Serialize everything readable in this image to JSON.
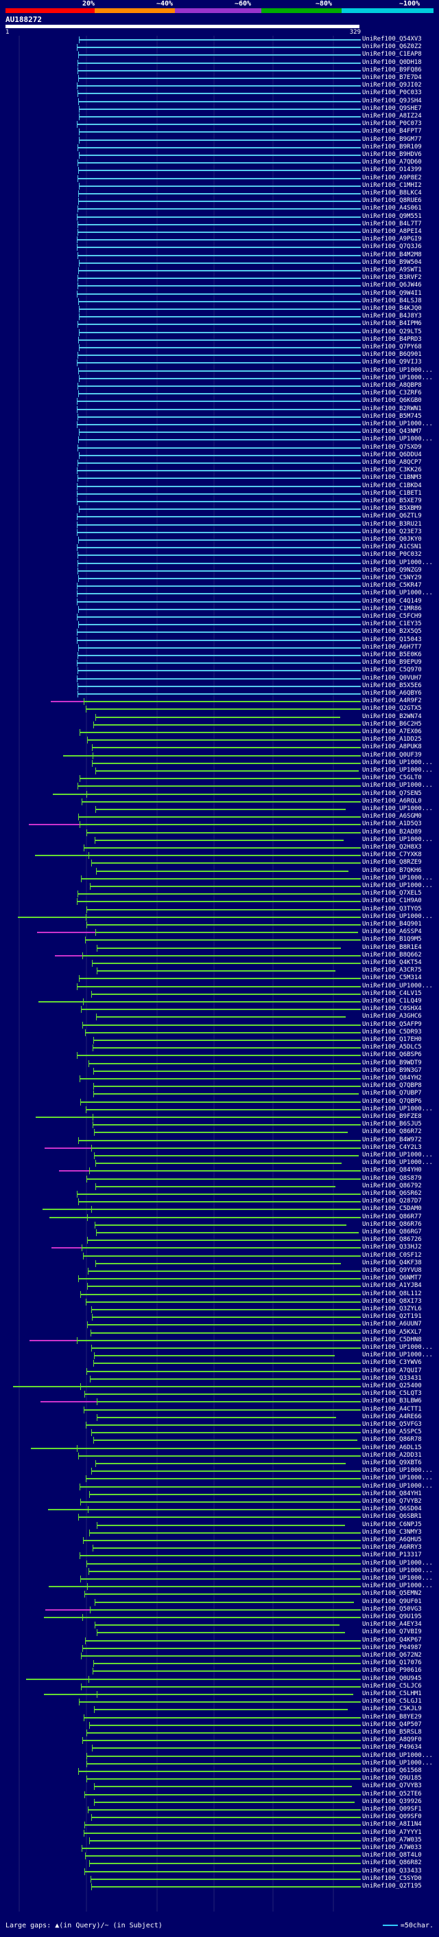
{
  "legend": {
    "labels": [
      "20%",
      "~40%",
      "~60%",
      "~80%",
      "~100%"
    ],
    "colors": [
      "#ff0000",
      "#ff8800",
      "#9933cc",
      "#00aa00",
      "#00ccdd"
    ]
  },
  "query": {
    "id": "AU188272",
    "start": "1",
    "end": "329"
  },
  "footer": {
    "gaps_text": "Large gaps: ▲(in Query)/~ (in Subject)",
    "scale_text": "=50char."
  },
  "colors": {
    "background": "#000066",
    "identity_100": "#55ccee",
    "identity_80": "#66dd33",
    "gap_subject": "#cc33cc",
    "gridline": "#222277"
  },
  "hits": [
    {
      "label": "UniRef100_Q54XV3",
      "identity": "~100%"
    },
    {
      "label": "UniRef100_Q6Z0Z2",
      "identity": "~100%"
    },
    {
      "label": "UniRef100_C1EAP8",
      "identity": "~100%"
    },
    {
      "label": "UniRef100_Q0DH18",
      "identity": "~100%"
    },
    {
      "label": "UniRef100_B9FQ86",
      "identity": "~100%"
    },
    {
      "label": "UniRef100_B7E7D4",
      "identity": "~100%"
    },
    {
      "label": "UniRef100_Q9JI02",
      "identity": "~100%"
    },
    {
      "label": "UniRef100_P0C033",
      "identity": "~100%"
    },
    {
      "label": "UniRef100_Q9JSH4",
      "identity": "~100%"
    },
    {
      "label": "UniRef100_Q9SHE7",
      "identity": "~100%"
    },
    {
      "label": "UniRef100_A8IZ24",
      "identity": "~100%"
    },
    {
      "label": "UniRef100_P0C073",
      "identity": "~100%"
    },
    {
      "label": "UniRef100_B4FPT7",
      "identity": "~100%"
    },
    {
      "label": "UniRef100_B9GM77",
      "identity": "~100%"
    },
    {
      "label": "UniRef100_B9R109",
      "identity": "~100%"
    },
    {
      "label": "UniRef100_B9HDV6",
      "identity": "~100%"
    },
    {
      "label": "UniRef100_A7QD60",
      "identity": "~100%"
    },
    {
      "label": "UniRef100_O14399",
      "identity": "~100%"
    },
    {
      "label": "UniRef100_A9P8E2",
      "identity": "~100%"
    },
    {
      "label": "UniRef100_C1MHI2",
      "identity": "~100%"
    },
    {
      "label": "UniRef100_B8LKC4",
      "identity": "~100%"
    },
    {
      "label": "UniRef100_Q8RUE6",
      "identity": "~100%"
    },
    {
      "label": "UniRef100_A4S061",
      "identity": "~100%"
    },
    {
      "label": "UniRef100_Q9M551",
      "identity": "~100%"
    },
    {
      "label": "UniRef100_B4L7T7",
      "identity": "~100%"
    },
    {
      "label": "UniRef100_A8PEI4",
      "identity": "~100%"
    },
    {
      "label": "UniRef100_A9PGI9",
      "identity": "~100%"
    },
    {
      "label": "UniRef100_Q7Q3J6",
      "identity": "~100%"
    },
    {
      "label": "UniRef100_B4M2M8",
      "identity": "~100%"
    },
    {
      "label": "UniRef100_B9W504",
      "identity": "~100%"
    },
    {
      "label": "UniRef100_A9SWT1",
      "identity": "~100%"
    },
    {
      "label": "UniRef100_B3RVF2",
      "identity": "~100%"
    },
    {
      "label": "UniRef100_Q6JW46",
      "identity": "~100%"
    },
    {
      "label": "UniRef100_Q9W4I1",
      "identity": "~100%"
    },
    {
      "label": "UniRef100_B4LSJ8",
      "identity": "~100%"
    },
    {
      "label": "UniRef100_B4KJQ0",
      "identity": "~100%"
    },
    {
      "label": "UniRef100_B4J8Y3",
      "identity": "~100%"
    },
    {
      "label": "UniRef100_B4IPM6",
      "identity": "~100%"
    },
    {
      "label": "UniRef100_Q29LT5",
      "identity": "~100%"
    },
    {
      "label": "UniRef100_B4PRD3",
      "identity": "~100%"
    },
    {
      "label": "UniRef100_Q7PY68",
      "identity": "~100%"
    },
    {
      "label": "UniRef100_B6Q901",
      "identity": "~100%"
    },
    {
      "label": "UniRef100_Q9VIJ3",
      "identity": "~100%"
    },
    {
      "label": "UniRef100_UP1000...",
      "identity": "~100%"
    },
    {
      "label": "UniRef100_UP1000...",
      "identity": "~100%"
    },
    {
      "label": "UniRef100_A8QBP8",
      "identity": "~100%"
    },
    {
      "label": "UniRef100_C3ZRF6",
      "identity": "~100%"
    },
    {
      "label": "UniRef100_Q6KGB0",
      "identity": "~100%"
    },
    {
      "label": "UniRef100_B2RWN1",
      "identity": "~100%"
    },
    {
      "label": "UniRef100_B5M745",
      "identity": "~100%"
    },
    {
      "label": "UniRef100_UP1000...",
      "identity": "~100%"
    },
    {
      "label": "UniRef100_Q43NM7",
      "identity": "~100%"
    },
    {
      "label": "UniRef100_UP1000...",
      "identity": "~100%"
    },
    {
      "label": "UniRef100_Q7SXD9",
      "identity": "~100%"
    },
    {
      "label": "UniRef100_Q6DDU4",
      "identity": "~100%"
    },
    {
      "label": "UniRef100_A8QCP7",
      "identity": "~100%"
    },
    {
      "label": "UniRef100_C3KK26",
      "identity": "~100%"
    },
    {
      "label": "UniRef100_C1BNM3",
      "identity": "~100%"
    },
    {
      "label": "UniRef100_C1BKD4",
      "identity": "~100%"
    },
    {
      "label": "UniRef100_C1BET1",
      "identity": "~100%"
    },
    {
      "label": "UniRef100_B5XE79",
      "identity": "~100%"
    },
    {
      "label": "UniRef100_B5XBM9",
      "identity": "~100%"
    },
    {
      "label": "UniRef100_Q6ZTL9",
      "identity": "~100%"
    },
    {
      "label": "UniRef100_B3RU21",
      "identity": "~100%"
    },
    {
      "label": "UniRef100_Q23E73",
      "identity": "~100%"
    },
    {
      "label": "UniRef100_Q0JKY0",
      "identity": "~100%"
    },
    {
      "label": "UniRef100_A1CSN1",
      "identity": "~100%"
    },
    {
      "label": "UniRef100_P0C032",
      "identity": "~100%"
    },
    {
      "label": "UniRef100_UP1000...",
      "identity": "~100%"
    },
    {
      "label": "UniRef100_Q9NZG9",
      "identity": "~100%"
    },
    {
      "label": "UniRef100_C5NY29",
      "identity": "~100%"
    },
    {
      "label": "UniRef100_C5KR47",
      "identity": "~100%"
    },
    {
      "label": "UniRef100_UP1000...",
      "identity": "~100%"
    },
    {
      "label": "UniRef100_C4Q149",
      "identity": "~100%"
    },
    {
      "label": "UniRef100_C1MR86",
      "identity": "~100%"
    },
    {
      "label": "UniRef100_C5FCH9",
      "identity": "~100%"
    },
    {
      "label": "UniRef100_C1EY35",
      "identity": "~100%"
    },
    {
      "label": "UniRef100_B2X5Q5",
      "identity": "~100%"
    },
    {
      "label": "UniRef100_Q15043",
      "identity": "~100%"
    },
    {
      "label": "UniRef100_A6H7T7",
      "identity": "~100%"
    },
    {
      "label": "UniRef100_B5E0K6",
      "identity": "~100%"
    },
    {
      "label": "UniRef100_B9EPU9",
      "identity": "~100%"
    },
    {
      "label": "UniRef100_C5Q970",
      "identity": "~100%"
    },
    {
      "label": "UniRef100_Q0VUH7",
      "identity": "~100%"
    },
    {
      "label": "UniRef100_B5X5E6",
      "identity": "~100%"
    },
    {
      "label": "UniRef100_A6QBY6",
      "identity": "~100%"
    },
    {
      "label": "UniRef100_A4R9F2",
      "identity": "~80%"
    },
    {
      "label": "UniRef100_Q2GTX5",
      "identity": "~80%"
    },
    {
      "label": "UniRef100_B2WN74",
      "identity": "~80%"
    },
    {
      "label": "UniRef100_B6C2H5",
      "identity": "~80%"
    },
    {
      "label": "UniRef100_A7EX06",
      "identity": "~80%"
    },
    {
      "label": "UniRef100_A1DD25",
      "identity": "~80%"
    },
    {
      "label": "UniRef100_A8PUK8",
      "identity": "~80%"
    },
    {
      "label": "UniRef100_Q0UF39",
      "identity": "~80%"
    },
    {
      "label": "UniRef100_UP1000...",
      "identity": "~80%"
    },
    {
      "label": "UniRef100_UP1000...",
      "identity": "~80%"
    },
    {
      "label": "UniRef100_C5GLT0",
      "identity": "~80%"
    },
    {
      "label": "UniRef100_UP1000...",
      "identity": "~80%"
    },
    {
      "label": "UniRef100_Q7SEN5",
      "identity": "~80%"
    },
    {
      "label": "UniRef100_A6RQL0",
      "identity": "~80%"
    },
    {
      "label": "UniRef100_UP1000...",
      "identity": "~80%"
    },
    {
      "label": "UniRef100_A6SGM0",
      "identity": "~80%"
    },
    {
      "label": "UniRef100_A1D5Q3",
      "identity": "~80%"
    },
    {
      "label": "UniRef100_B2AD89",
      "identity": "~80%"
    },
    {
      "label": "UniRef100_UP1000...",
      "identity": "~80%"
    },
    {
      "label": "UniRef100_Q2H8X3",
      "identity": "~80%"
    },
    {
      "label": "UniRef100_C7YXK8",
      "identity": "~80%"
    },
    {
      "label": "UniRef100_Q8RZE9",
      "identity": "~80%"
    },
    {
      "label": "UniRef100_B7QKH6",
      "identity": "~80%"
    },
    {
      "label": "UniRef100_UP1000...",
      "identity": "~80%"
    },
    {
      "label": "UniRef100_UP1000...",
      "identity": "~80%"
    },
    {
      "label": "UniRef100_Q7XEL5",
      "identity": "~80%"
    },
    {
      "label": "UniRef100_C1H9A0",
      "identity": "~80%"
    },
    {
      "label": "UniRef100_Q3TYO5",
      "identity": "~80%"
    },
    {
      "label": "UniRef100_UP1000...",
      "identity": "~80%"
    },
    {
      "label": "UniRef100_B4Q901",
      "identity": "~80%"
    },
    {
      "label": "UniRef100_A6SSP4",
      "identity": "~80%"
    },
    {
      "label": "UniRef100_B1Q9M5",
      "identity": "~80%"
    },
    {
      "label": "UniRef100_B8R1E4",
      "identity": "~80%"
    },
    {
      "label": "UniRef100_B8Q662",
      "identity": "~80%"
    },
    {
      "label": "UniRef100_Q4KT54",
      "identity": "~80%"
    },
    {
      "label": "UniRef100_A3CR75",
      "identity": "~80%"
    },
    {
      "label": "UniRef100_C5M314",
      "identity": "~80%"
    },
    {
      "label": "UniRef100_UP1000...",
      "identity": "~80%"
    },
    {
      "label": "UniRef100_C4LV15",
      "identity": "~80%"
    },
    {
      "label": "UniRef100_C1LQ49",
      "identity": "~80%"
    },
    {
      "label": "UniRef100_C0SHX4",
      "identity": "~80%"
    },
    {
      "label": "UniRef100_A3GHC6",
      "identity": "~80%"
    },
    {
      "label": "UniRef100_Q5AFP9",
      "identity": "~80%"
    },
    {
      "label": "UniRef100_C5DR93",
      "identity": "~80%"
    },
    {
      "label": "UniRef100_Q17EH0",
      "identity": "~80%"
    },
    {
      "label": "UniRef100_A5DLC5",
      "identity": "~80%"
    },
    {
      "label": "UniRef100_Q6BSP6",
      "identity": "~80%"
    },
    {
      "label": "UniRef100_B9WDT9",
      "identity": "~80%"
    },
    {
      "label": "UniRef100_B9N3G7",
      "identity": "~80%"
    },
    {
      "label": "UniRef100_Q84YH2",
      "identity": "~80%"
    },
    {
      "label": "UniRef100_Q7QBP8",
      "identity": "~80%"
    },
    {
      "label": "UniRef100_Q7UBP7",
      "identity": "~80%"
    },
    {
      "label": "UniRef100_Q7QBP6",
      "identity": "~80%"
    },
    {
      "label": "UniRef100_UP1000...",
      "identity": "~80%"
    },
    {
      "label": "UniRef100_B9FZE8",
      "identity": "~80%"
    },
    {
      "label": "UniRef100_B6SJU5",
      "identity": "~80%"
    },
    {
      "label": "UniRef100_Q86R72",
      "identity": "~80%"
    },
    {
      "label": "UniRef100_B4W972",
      "identity": "~80%"
    },
    {
      "label": "UniRef100_C4Y2L3",
      "identity": "~80%"
    },
    {
      "label": "UniRef100_UP1000...",
      "identity": "~80%"
    },
    {
      "label": "UniRef100_UP1000...",
      "identity": "~80%"
    },
    {
      "label": "UniRef100_Q84YH0",
      "identity": "~80%"
    },
    {
      "label": "UniRef100_Q8S879",
      "identity": "~80%"
    },
    {
      "label": "UniRef100_Q86792",
      "identity": "~80%"
    },
    {
      "label": "UniRef100_Q6SR62",
      "identity": "~80%"
    },
    {
      "label": "UniRef100_Q287D7",
      "identity": "~80%"
    },
    {
      "label": "UniRef100_C5DAM0",
      "identity": "~80%"
    },
    {
      "label": "UniRef100_Q86R77",
      "identity": "~80%"
    },
    {
      "label": "UniRef100_Q86R76",
      "identity": "~80%"
    },
    {
      "label": "UniRef100_Q86RG7",
      "identity": "~80%"
    },
    {
      "label": "UniRef100_Q86726",
      "identity": "~80%"
    },
    {
      "label": "UniRef100_Q33HJ2",
      "identity": "~80%"
    },
    {
      "label": "UniRef100_C0SF12",
      "identity": "~80%"
    },
    {
      "label": "UniRef100_Q4KF38",
      "identity": "~80%"
    },
    {
      "label": "UniRef100_Q9YVU8",
      "identity": "~80%"
    },
    {
      "label": "UniRef100_Q6NMT7",
      "identity": "~80%"
    },
    {
      "label": "UniRef100_A1YJB4",
      "identity": "~80%"
    },
    {
      "label": "UniRef100_Q8L112",
      "identity": "~80%"
    },
    {
      "label": "UniRef100_Q8XI73",
      "identity": "~80%"
    },
    {
      "label": "UniRef100_Q3ZYL6",
      "identity": "~80%"
    },
    {
      "label": "UniRef100_Q2T191",
      "identity": "~80%"
    },
    {
      "label": "UniRef100_A6UUN7",
      "identity": "~80%"
    },
    {
      "label": "UniRef100_A5KXL7",
      "identity": "~80%"
    },
    {
      "label": "UniRef100_C5DHN8",
      "identity": "~80%"
    },
    {
      "label": "UniRef100_UP1000...",
      "identity": "~80%"
    },
    {
      "label": "UniRef100_UP1000...",
      "identity": "~80%"
    },
    {
      "label": "UniRef100_C3YWV6",
      "identity": "~80%"
    },
    {
      "label": "UniRef100_A7QUI7",
      "identity": "~80%"
    },
    {
      "label": "UniRef100_Q33431",
      "identity": "~80%"
    },
    {
      "label": "UniRef100_Q25400",
      "identity": "~80%"
    },
    {
      "label": "UniRef100_C5LQT3",
      "identity": "~80%"
    },
    {
      "label": "UniRef100_B3LBW6",
      "identity": "~80%"
    },
    {
      "label": "UniRef100_A4CTT1",
      "identity": "~80%"
    },
    {
      "label": "UniRef100_A4RE66",
      "identity": "~80%"
    },
    {
      "label": "UniRef100_Q5VFG3",
      "identity": "~80%"
    },
    {
      "label": "UniRef100_A5SPC5",
      "identity": "~80%"
    },
    {
      "label": "UniRef100_Q86R78",
      "identity": "~80%"
    },
    {
      "label": "UniRef100_A6DL15",
      "identity": "~80%"
    },
    {
      "label": "UniRef100_A2DD31",
      "identity": "~80%"
    },
    {
      "label": "UniRef100_Q9XBT6",
      "identity": "~80%"
    },
    {
      "label": "UniRef100_UP1000...",
      "identity": "~80%"
    },
    {
      "label": "UniRef100_UP1000...",
      "identity": "~80%"
    },
    {
      "label": "UniRef100_UP1000...",
      "identity": "~80%"
    },
    {
      "label": "UniRef100_Q84YH1",
      "identity": "~80%"
    },
    {
      "label": "UniRef100_Q7VYB2",
      "identity": "~80%"
    },
    {
      "label": "UniRef100_Q6SD04",
      "identity": "~80%"
    },
    {
      "label": "UniRef100_Q6SBR1",
      "identity": "~80%"
    },
    {
      "label": "UniRef100_C6NPJ5",
      "identity": "~80%"
    },
    {
      "label": "UniRef100_C3NMY3",
      "identity": "~80%"
    },
    {
      "label": "UniRef100_A6QHU5",
      "identity": "~80%"
    },
    {
      "label": "UniRef100_A6RRY3",
      "identity": "~80%"
    },
    {
      "label": "UniRef100_P13317",
      "identity": "~80%"
    },
    {
      "label": "UniRef100_UP1000...",
      "identity": "~80%"
    },
    {
      "label": "UniRef100_UP1000...",
      "identity": "~80%"
    },
    {
      "label": "UniRef100_UP1000...",
      "identity": "~80%"
    },
    {
      "label": "UniRef100_UP1000...",
      "identity": "~80%"
    },
    {
      "label": "UniRef100_Q5EMN2",
      "identity": "~80%"
    },
    {
      "label": "UniRef100_Q9UF01",
      "identity": "~80%"
    },
    {
      "label": "UniRef100_Q50VG3",
      "identity": "~80%"
    },
    {
      "label": "UniRef100_Q9U195",
      "identity": "~80%"
    },
    {
      "label": "UniRef100_A4EY34",
      "identity": "~80%"
    },
    {
      "label": "UniRef100_Q7VBI9",
      "identity": "~80%"
    },
    {
      "label": "UniRef100_Q4KP67",
      "identity": "~80%"
    },
    {
      "label": "UniRef100_P04987",
      "identity": "~80%"
    },
    {
      "label": "UniRef100_Q672N2",
      "identity": "~80%"
    },
    {
      "label": "UniRef100_Q17076",
      "identity": "~80%"
    },
    {
      "label": "UniRef100_P90616",
      "identity": "~80%"
    },
    {
      "label": "UniRef100_Q0U945",
      "identity": "~80%"
    },
    {
      "label": "UniRef100_C5LJC6",
      "identity": "~80%"
    },
    {
      "label": "UniRef100_C5LHM1",
      "identity": "~80%"
    },
    {
      "label": "UniRef100_C5LGJ1",
      "identity": "~80%"
    },
    {
      "label": "UniRef100_C5KJL9",
      "identity": "~80%"
    },
    {
      "label": "UniRef100_B8YE29",
      "identity": "~80%"
    },
    {
      "label": "UniRef100_Q4P507",
      "identity": "~80%"
    },
    {
      "label": "UniRef100_B5RSL8",
      "identity": "~80%"
    },
    {
      "label": "UniRef100_A8Q9F0",
      "identity": "~80%"
    },
    {
      "label": "UniRef100_P49634",
      "identity": "~80%"
    },
    {
      "label": "UniRef100_UP1000...",
      "identity": "~80%"
    },
    {
      "label": "UniRef100_UP1000...",
      "identity": "~80%"
    },
    {
      "label": "UniRef100_Q61568",
      "identity": "~80%"
    },
    {
      "label": "UniRef100_Q9U185",
      "identity": "~80%"
    },
    {
      "label": "UniRef100_Q7VYB3",
      "identity": "~80%"
    },
    {
      "label": "UniRef100_Q52TE6",
      "identity": "~80%"
    },
    {
      "label": "UniRef100_Q39926",
      "identity": "~80%"
    },
    {
      "label": "UniRef100_Q09SF1",
      "identity": "~80%"
    },
    {
      "label": "UniRef100_Q09SF0",
      "identity": "~80%"
    },
    {
      "label": "UniRef100_A8I1N4",
      "identity": "~80%"
    },
    {
      "label": "UniRef100_A7YYY1",
      "identity": "~80%"
    },
    {
      "label": "UniRef100_A7W035",
      "identity": "~80%"
    },
    {
      "label": "UniRef100_A7W033",
      "identity": "~80%"
    },
    {
      "label": "UniRef100_Q8T4L0",
      "identity": "~80%"
    },
    {
      "label": "UniRef100_Q86R82",
      "identity": "~80%"
    },
    {
      "label": "UniRef100_Q33433",
      "identity": "~80%"
    },
    {
      "label": "UniRef100_C5SYD0",
      "identity": "~80%"
    },
    {
      "label": "UniRef100_Q2T195",
      "identity": "~80%"
    }
  ]
}
